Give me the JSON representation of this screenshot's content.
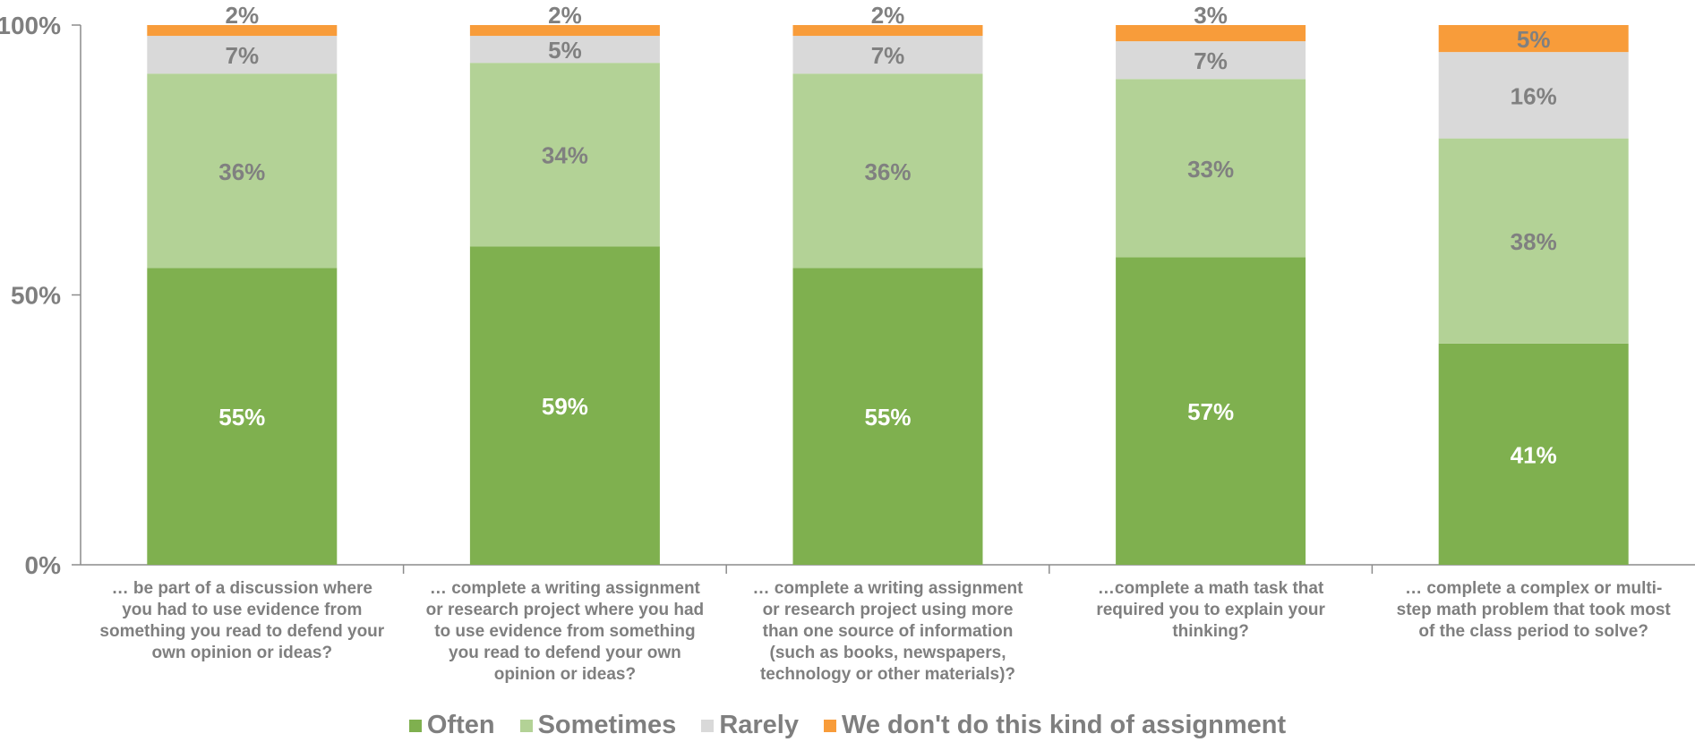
{
  "chart_data": {
    "type": "bar",
    "stacked": true,
    "categories": [
      [
        "… be part of a discussion where",
        "you had to use evidence from",
        "something you read to defend your",
        "own opinion or ideas?"
      ],
      [
        "… complete a writing assignment",
        "or research project where you had",
        "to use evidence from something",
        "you read to defend your own",
        "opinion or ideas?"
      ],
      [
        "… complete a writing assignment",
        "or research project using more",
        "than one source of information",
        "(such as books, newspapers,",
        "technology or other materials)?"
      ],
      [
        "…complete a math task that",
        "required you to explain your",
        "thinking?"
      ],
      [
        "… complete a complex or multi-",
        "step math problem that took most",
        "of the class period to solve?"
      ]
    ],
    "series": [
      {
        "name": "Often",
        "color": "#7fb04f",
        "label_color": "#ffffff",
        "values": [
          55,
          59,
          55,
          57,
          41
        ]
      },
      {
        "name": "Sometimes",
        "color": "#b3d296",
        "label_color": "#808080",
        "values": [
          36,
          34,
          36,
          33,
          38
        ]
      },
      {
        "name": "Rarely",
        "color": "#d9d9d9",
        "label_color": "#808080",
        "values": [
          7,
          5,
          7,
          7,
          16
        ]
      },
      {
        "name": "We don't do this kind of assignment",
        "color": "#f89c3a",
        "label_color": "#808080",
        "values": [
          2,
          2,
          2,
          3,
          5
        ]
      }
    ],
    "data_labels": [
      [
        "55%",
        "59%",
        "55%",
        "57%",
        "41%"
      ],
      [
        "36%",
        "34%",
        "36%",
        "33%",
        "38%"
      ],
      [
        "7%",
        "5%",
        "7%",
        "7%",
        "16%"
      ],
      [
        "2%",
        "2%",
        "2%",
        "3%",
        "5%"
      ]
    ],
    "yticks": [
      {
        "value": 0,
        "label": "0%"
      },
      {
        "value": 50,
        "label": "50%"
      },
      {
        "value": 100,
        "label": "100%"
      }
    ],
    "ylim": [
      0,
      100
    ],
    "legend_position": "bottom"
  }
}
